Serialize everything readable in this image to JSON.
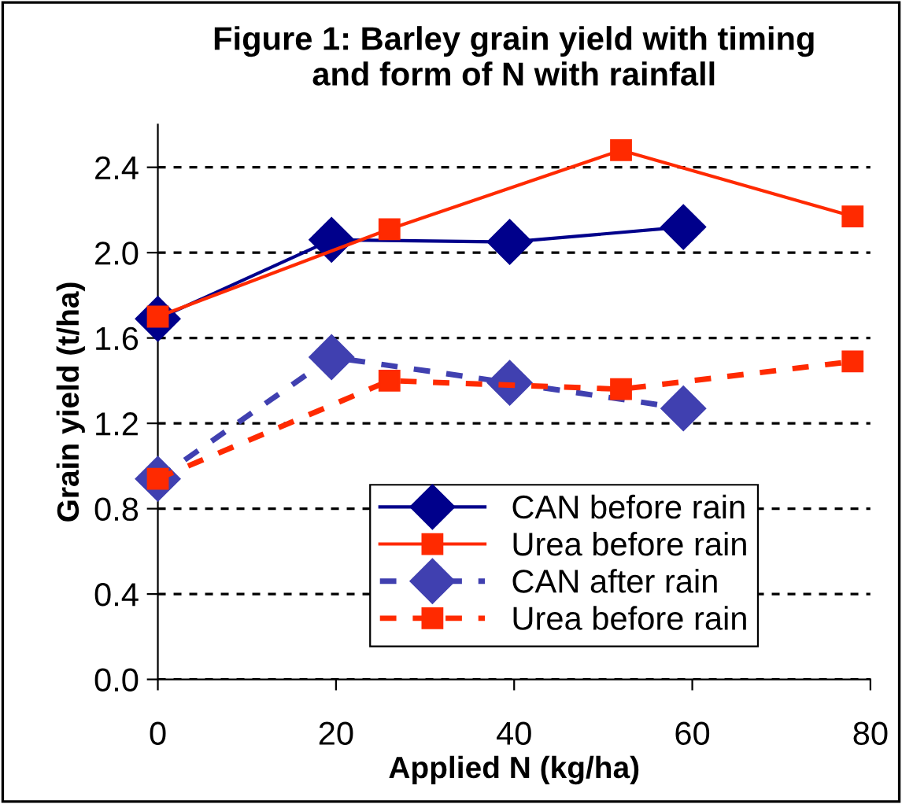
{
  "chart_data": {
    "type": "line",
    "title": "Figure 1: Barley grain yield with timing\nand form of N with rainfall",
    "xlabel": "Applied N (kg/ha)",
    "ylabel": "Grain yield (t/ha)",
    "xlim": [
      0,
      80
    ],
    "xticks": [
      0,
      20,
      40,
      60,
      80
    ],
    "ylim": [
      0,
      2.6
    ],
    "yticks": [
      {
        "value": 0,
        "label": "0.0"
      },
      {
        "value": 0.4,
        "label": "0.4"
      },
      {
        "value": 0.8,
        "label": "0.8"
      },
      {
        "value": 1.2,
        "label": "1.2"
      },
      {
        "value": 1.6,
        "label": "1.6"
      },
      {
        "value": 2.0,
        "label": "2.0"
      },
      {
        "value": 2.4,
        "label": "2.4"
      }
    ],
    "grid": "y",
    "legend": "bottom",
    "series": [
      {
        "name": "CAN before rain",
        "color": "#00008b",
        "marker": "diamond",
        "line_style": "solid",
        "x": [
          0,
          19.5,
          39.5,
          59
        ],
        "values": [
          1.69,
          2.06,
          2.05,
          2.12
        ]
      },
      {
        "name": "Urea before rain",
        "color": "#ff2a00",
        "marker": "square",
        "line_style": "solid",
        "x": [
          0,
          26,
          52,
          78
        ],
        "values": [
          1.7,
          2.11,
          2.48,
          2.17
        ]
      },
      {
        "name": "CAN after rain",
        "color": "#4040b0",
        "marker": "diamond",
        "line_style": "dashed",
        "x": [
          0,
          19.5,
          39.5,
          59
        ],
        "values": [
          0.94,
          1.51,
          1.39,
          1.27
        ]
      },
      {
        "name": "Urea before rain",
        "color": "#ff2a00",
        "marker": "square",
        "line_style": "dashed",
        "x": [
          0,
          26,
          52,
          78
        ],
        "values": [
          0.94,
          1.4,
          1.36,
          1.49
        ]
      }
    ]
  }
}
